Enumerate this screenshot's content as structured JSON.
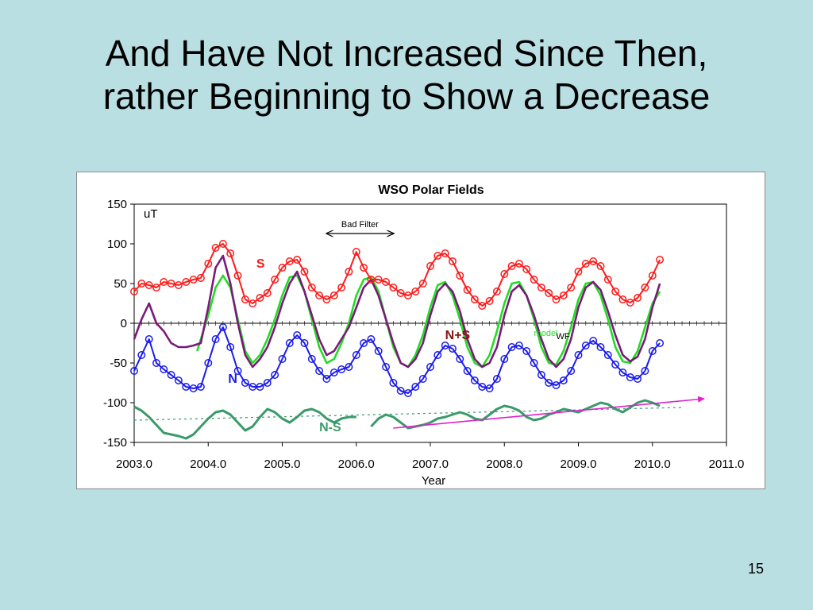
{
  "slide": {
    "title_line1": "And Have Not Increased Since Then,",
    "title_line2": "rather Beginning to Show a Decrease",
    "page_number": "15"
  },
  "colors": {
    "S": "#ff1a1a",
    "N": "#1a1aee",
    "N+S": "#7a1a7a",
    "model": "#22dd22",
    "N-S": "#3a9a6a",
    "trend_arrow": "#e020d0",
    "background": "#b9dfe3"
  },
  "chart_data": {
    "type": "line",
    "title": "WSO Polar Fields",
    "xlabel": "Year",
    "ylabel": "",
    "unit_label": "uT",
    "xlim": [
      2003.0,
      2011.0
    ],
    "ylim": [
      -150,
      150
    ],
    "x_ticks": [
      "2003.0",
      "2004.0",
      "2005.0",
      "2006.0",
      "2007.0",
      "2008.0",
      "2009.0",
      "2010.0",
      "2011.0"
    ],
    "y_ticks": [
      "150",
      "100",
      "50",
      "0",
      "-50",
      "-100",
      "-150"
    ],
    "grid": false,
    "series": [
      {
        "name": "S",
        "style": "circles+line",
        "x": [
          2003.0,
          2003.1,
          2003.2,
          2003.3,
          2003.4,
          2003.5,
          2003.6,
          2003.7,
          2003.8,
          2003.9,
          2004.0,
          2004.1,
          2004.2,
          2004.3,
          2004.4,
          2004.5,
          2004.6,
          2004.7,
          2004.8,
          2004.9,
          2005.0,
          2005.1,
          2005.2,
          2005.3,
          2005.4,
          2005.5,
          2005.6,
          2005.7,
          2005.8,
          2005.9,
          2006.0,
          2006.1,
          2006.2,
          2006.3,
          2006.4,
          2006.5,
          2006.6,
          2006.7,
          2006.8,
          2006.9,
          2007.0,
          2007.1,
          2007.2,
          2007.3,
          2007.4,
          2007.5,
          2007.6,
          2007.7,
          2007.8,
          2007.9,
          2008.0,
          2008.1,
          2008.2,
          2008.3,
          2008.4,
          2008.5,
          2008.6,
          2008.7,
          2008.8,
          2008.9,
          2009.0,
          2009.1,
          2009.2,
          2009.3,
          2009.4,
          2009.5,
          2009.6,
          2009.7,
          2009.8,
          2009.9,
          2010.0,
          2010.1
        ],
        "values": [
          40,
          50,
          48,
          45,
          52,
          50,
          48,
          52,
          55,
          57,
          75,
          95,
          100,
          88,
          60,
          30,
          25,
          32,
          38,
          55,
          70,
          78,
          80,
          65,
          45,
          35,
          30,
          35,
          45,
          65,
          90,
          70,
          55,
          55,
          52,
          45,
          38,
          35,
          40,
          50,
          72,
          85,
          88,
          78,
          60,
          42,
          30,
          22,
          28,
          40,
          62,
          72,
          75,
          68,
          55,
          45,
          38,
          30,
          35,
          45,
          65,
          75,
          78,
          72,
          55,
          40,
          30,
          26,
          32,
          45,
          60,
          80
        ]
      },
      {
        "name": "N",
        "style": "circles+line",
        "x": [
          2003.0,
          2003.1,
          2003.2,
          2003.3,
          2003.4,
          2003.5,
          2003.6,
          2003.7,
          2003.8,
          2003.9,
          2004.0,
          2004.1,
          2004.2,
          2004.3,
          2004.4,
          2004.5,
          2004.6,
          2004.7,
          2004.8,
          2004.9,
          2005.0,
          2005.1,
          2005.2,
          2005.3,
          2005.4,
          2005.5,
          2005.6,
          2005.7,
          2005.8,
          2005.9,
          2006.0,
          2006.1,
          2006.2,
          2006.3,
          2006.4,
          2006.5,
          2006.6,
          2006.7,
          2006.8,
          2006.9,
          2007.0,
          2007.1,
          2007.2,
          2007.3,
          2007.4,
          2007.5,
          2007.6,
          2007.7,
          2007.8,
          2007.9,
          2008.0,
          2008.1,
          2008.2,
          2008.3,
          2008.4,
          2008.5,
          2008.6,
          2008.7,
          2008.8,
          2008.9,
          2009.0,
          2009.1,
          2009.2,
          2009.3,
          2009.4,
          2009.5,
          2009.6,
          2009.7,
          2009.8,
          2009.9,
          2010.0,
          2010.1
        ],
        "values": [
          -60,
          -40,
          -20,
          -50,
          -58,
          -65,
          -72,
          -80,
          -82,
          -80,
          -50,
          -20,
          -5,
          -30,
          -60,
          -75,
          -80,
          -80,
          -75,
          -65,
          -45,
          -25,
          -15,
          -25,
          -45,
          -60,
          -70,
          -62,
          -58,
          -55,
          -40,
          -25,
          -20,
          -35,
          -55,
          -75,
          -85,
          -88,
          -80,
          -70,
          -55,
          -40,
          -28,
          -32,
          -45,
          -60,
          -72,
          -80,
          -82,
          -70,
          -45,
          -30,
          -28,
          -35,
          -50,
          -65,
          -75,
          -78,
          -72,
          -60,
          -40,
          -28,
          -22,
          -30,
          -40,
          -52,
          -62,
          -68,
          -70,
          -60,
          -35,
          -25
        ]
      },
      {
        "name": "N+S",
        "style": "line",
        "x": [
          2003.0,
          2003.1,
          2003.2,
          2003.3,
          2003.4,
          2003.5,
          2003.6,
          2003.7,
          2003.8,
          2003.9,
          2004.0,
          2004.1,
          2004.2,
          2004.3,
          2004.4,
          2004.5,
          2004.6,
          2004.7,
          2004.8,
          2004.9,
          2005.0,
          2005.1,
          2005.2,
          2005.3,
          2005.4,
          2005.5,
          2005.6,
          2005.7,
          2005.8,
          2005.9,
          2006.0,
          2006.1,
          2006.2,
          2006.3,
          2006.4,
          2006.5,
          2006.6,
          2006.7,
          2006.8,
          2006.9,
          2007.0,
          2007.1,
          2007.2,
          2007.3,
          2007.4,
          2007.5,
          2007.6,
          2007.7,
          2007.8,
          2007.9,
          2008.0,
          2008.1,
          2008.2,
          2008.3,
          2008.4,
          2008.5,
          2008.6,
          2008.7,
          2008.8,
          2008.9,
          2009.0,
          2009.1,
          2009.2,
          2009.3,
          2009.4,
          2009.5,
          2009.6,
          2009.7,
          2009.8,
          2009.9,
          2010.0,
          2010.1
        ],
        "values": [
          -20,
          5,
          25,
          0,
          -10,
          -25,
          -30,
          -30,
          -28,
          -25,
          20,
          70,
          85,
          50,
          0,
          -40,
          -55,
          -45,
          -30,
          -5,
          25,
          50,
          65,
          40,
          10,
          -20,
          -40,
          -35,
          -20,
          -5,
          20,
          45,
          55,
          35,
          5,
          -25,
          -50,
          -55,
          -45,
          -25,
          10,
          40,
          50,
          40,
          15,
          -20,
          -45,
          -55,
          -50,
          -30,
          10,
          40,
          48,
          35,
          10,
          -20,
          -45,
          -55,
          -45,
          -20,
          20,
          45,
          52,
          42,
          15,
          -15,
          -40,
          -48,
          -42,
          -20,
          20,
          50
        ]
      },
      {
        "name": "model",
        "style": "line",
        "x": [
          2003.85,
          2003.9,
          2004.0,
          2004.1,
          2004.2,
          2004.3,
          2004.4,
          2004.5,
          2004.6,
          2004.7,
          2004.8,
          2004.9,
          2005.0,
          2005.1,
          2005.2,
          2005.3,
          2005.4,
          2005.5,
          2005.6,
          2005.7,
          2005.8,
          2005.9,
          2006.0,
          2006.1,
          2006.2,
          2006.3,
          2006.4,
          2006.5,
          2006.6,
          2006.7,
          2006.8,
          2006.9,
          2007.0,
          2007.1,
          2007.2,
          2007.3,
          2007.4,
          2007.5,
          2007.6,
          2007.7,
          2007.8,
          2007.9,
          2008.0,
          2008.1,
          2008.2,
          2008.3,
          2008.4,
          2008.5,
          2008.6,
          2008.7,
          2008.8,
          2008.9,
          2009.0,
          2009.1,
          2009.2,
          2009.3,
          2009.4,
          2009.5,
          2009.6,
          2009.7,
          2009.8,
          2009.9,
          2010.0,
          2010.1
        ],
        "values": [
          -35,
          -20,
          10,
          45,
          60,
          45,
          5,
          -35,
          -50,
          -40,
          -20,
          5,
          35,
          58,
          60,
          40,
          5,
          -30,
          -50,
          -45,
          -25,
          0,
          35,
          55,
          58,
          40,
          5,
          -30,
          -50,
          -55,
          -40,
          -15,
          20,
          48,
          52,
          35,
          5,
          -30,
          -50,
          -55,
          -40,
          -10,
          25,
          50,
          52,
          35,
          5,
          -30,
          -50,
          -52,
          -35,
          -5,
          30,
          50,
          52,
          35,
          5,
          -30,
          -48,
          -50,
          -35,
          -5,
          25,
          40
        ]
      },
      {
        "name": "N-S",
        "style": "line",
        "segments": [
          {
            "x": [
              2003.0,
              2003.1,
              2003.2,
              2003.3,
              2003.4,
              2003.5,
              2003.6,
              2003.7,
              2003.8,
              2003.9,
              2004.0,
              2004.1,
              2004.2,
              2004.3,
              2004.4,
              2004.5,
              2004.6,
              2004.7,
              2004.8,
              2004.9,
              2005.0,
              2005.1,
              2005.2,
              2005.3,
              2005.4,
              2005.5,
              2005.6,
              2005.7,
              2005.8,
              2005.9,
              2006.0
            ],
            "values": [
              -105,
              -110,
              -118,
              -128,
              -138,
              -140,
              -142,
              -145,
              -140,
              -130,
              -120,
              -112,
              -110,
              -115,
              -125,
              -135,
              -130,
              -118,
              -108,
              -112,
              -120,
              -125,
              -118,
              -110,
              -108,
              -112,
              -120,
              -125,
              -120,
              -118,
              -118
            ]
          },
          {
            "x": [
              2006.2,
              2006.3,
              2006.4,
              2006.5,
              2006.6,
              2006.7,
              2006.8,
              2006.9,
              2007.0,
              2007.1,
              2007.2,
              2007.3,
              2007.4,
              2007.5,
              2007.6,
              2007.7,
              2007.8,
              2007.9,
              2008.0,
              2008.1,
              2008.2,
              2008.3,
              2008.4,
              2008.5,
              2008.6,
              2008.7,
              2008.8,
              2008.9,
              2009.0,
              2009.1,
              2009.2,
              2009.3,
              2009.4,
              2009.5,
              2009.6,
              2009.7,
              2009.8,
              2009.9,
              2010.0,
              2010.1
            ],
            "values": [
              -130,
              -120,
              -115,
              -118,
              -125,
              -132,
              -130,
              -128,
              -125,
              -120,
              -118,
              -115,
              -112,
              -115,
              -120,
              -122,
              -115,
              -108,
              -104,
              -106,
              -110,
              -118,
              -122,
              -120,
              -115,
              -112,
              -108,
              -110,
              -112,
              -108,
              -104,
              -100,
              -102,
              -108,
              -112,
              -106,
              -100,
              -97,
              -100,
              -104
            ]
          }
        ]
      }
    ],
    "trend_lines": [
      {
        "name": "N-S trend (dashed)",
        "x": [
          2003.0,
          2010.4
        ],
        "values": [
          -122,
          -106
        ]
      }
    ],
    "annotations": {
      "bad_filter": {
        "text": "Bad Filter",
        "x_from": 2005.6,
        "x_to": 2006.5,
        "y": 113
      },
      "trend_arrow": {
        "x_from": 2006.5,
        "y_from": -132,
        "x_to": 2010.7,
        "y_to": -95
      },
      "labels": [
        {
          "text": "S",
          "x": 2004.65,
          "y": 70,
          "color": "#ff1a1a"
        },
        {
          "text": "N",
          "x": 2004.27,
          "y": -75,
          "color": "#1a1aee"
        },
        {
          "text": "N+S",
          "x": 2007.2,
          "y": -20,
          "color": "#8b1010"
        },
        {
          "text": "model",
          "x": 2008.4,
          "y": -16,
          "color": "#22dd22"
        },
        {
          "text": "WF",
          "x": 2008.7,
          "y": -20,
          "color": "#000000"
        },
        {
          "text": "N-S",
          "x": 2005.5,
          "y": -136,
          "color": "#3a9a6a"
        }
      ]
    }
  }
}
